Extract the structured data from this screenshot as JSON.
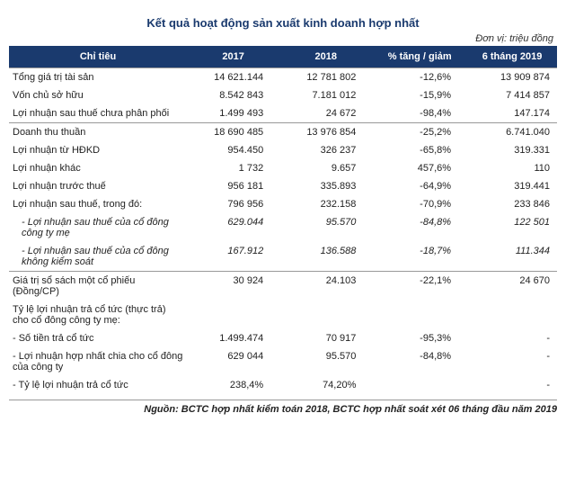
{
  "title": "Kết quả hoạt động sản xuất kinh doanh hợp nhất",
  "unit": "Đơn vị: triệu đồng",
  "columns": [
    "Chỉ tiêu",
    "2017",
    "2018",
    "% tăng / giảm",
    "6 tháng 2019"
  ],
  "rows": [
    {
      "label": "Tổng giá trị tài sản",
      "c1": "14 621.144",
      "c2": "12 781 802",
      "c3": "-12,6%",
      "c4": "13 909 874",
      "sep": true
    },
    {
      "label": "Vốn chủ sở hữu",
      "c1": "8.542 843",
      "c2": "7.181 012",
      "c3": "-15,9%",
      "c4": "7 414 857"
    },
    {
      "label": "Lợi nhuận sau thuế chưa phân phối",
      "c1": "1.499 493",
      "c2": "24 672",
      "c3": "-98,4%",
      "c4": "147.174"
    },
    {
      "label": "Doanh thu thuần",
      "c1": "18 690 485",
      "c2": "13 976 854",
      "c3": "-25,2%",
      "c4": "6.741.040",
      "sep": true
    },
    {
      "label": "Lợi nhuận từ HĐKD",
      "c1": "954.450",
      "c2": "326 237",
      "c3": "-65,8%",
      "c4": "319.331"
    },
    {
      "label": "Lợi nhuận khác",
      "c1": "1 732",
      "c2": "9.657",
      "c3": "457,6%",
      "c4": "110"
    },
    {
      "label": "Lợi nhuận trước thuế",
      "c1": "956 181",
      "c2": "335.893",
      "c3": "-64,9%",
      "c4": "319.441"
    },
    {
      "label": "Lợi nhuận sau thuế, trong đó:",
      "c1": "796 956",
      "c2": "232.158",
      "c3": "-70,9%",
      "c4": "233 846"
    },
    {
      "label": "- Lợi nhuận sau thuế của cổ đông công ty mẹ",
      "c1": "629.044",
      "c2": "95.570",
      "c3": "-84,8%",
      "c4": "122 501",
      "sub": true
    },
    {
      "label": "- Lợi nhuận sau thuế của cổ đông không kiểm soát",
      "c1": "167.912",
      "c2": "136.588",
      "c3": "-18,7%",
      "c4": "111.344",
      "sub": true
    },
    {
      "label": "Giá trị sổ sách một cổ phiếu (Đồng/CP)",
      "c1": "30 924",
      "c2": "24.103",
      "c3": "-22,1%",
      "c4": "24 670",
      "sep": true
    },
    {
      "label": "Tỷ lệ lợi nhuận trả cổ tức (thực trả) cho cổ đông công ty mẹ:",
      "c1": "",
      "c2": "",
      "c3": "",
      "c4": ""
    },
    {
      "label": "- Số tiền trả cổ tức",
      "c1": "1.499.474",
      "c2": "70 917",
      "c3": "-95,3%",
      "c4": "-"
    },
    {
      "label": "- Lợi nhuận hợp nhất chia cho cổ đông của công ty",
      "c1": "629 044",
      "c2": "95.570",
      "c3": "-84,8%",
      "c4": "-"
    },
    {
      "label": "- Tỷ lệ lợi nhuận trả cổ tức",
      "c1": "238,4%",
      "c2": "74,20%",
      "c3": "",
      "c4": "-"
    }
  ],
  "source": "Nguồn: BCTC hợp nhất kiểm toán 2018, BCTC hợp nhất soát xét 06 tháng đầu năm 2019"
}
